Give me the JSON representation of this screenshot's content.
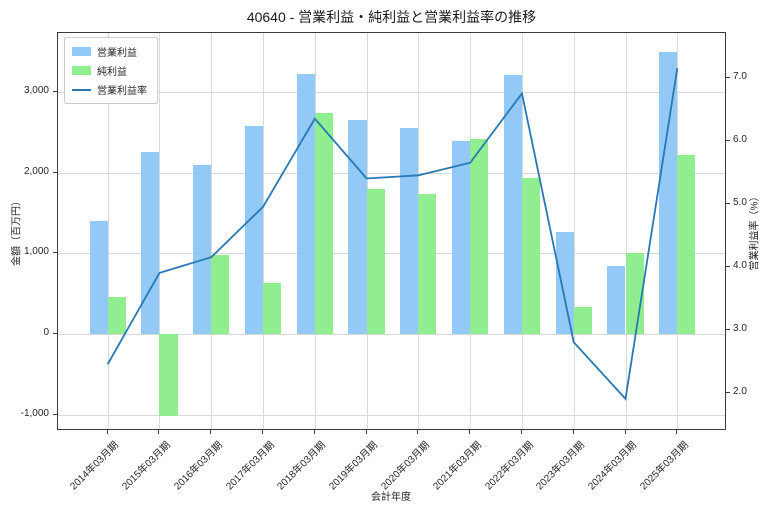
{
  "title": "40640 - 営業利益・純利益と営業利益率の推移",
  "axes": {
    "x_label": "会計年度",
    "left_label": "金額（百万円）",
    "right_label": "営業利益率（%）"
  },
  "legend": {
    "position": "upper left",
    "items": [
      {
        "label": "営業利益",
        "type": "patch",
        "color": "#92C9F6"
      },
      {
        "label": "純利益",
        "type": "patch",
        "color": "#90EE90"
      },
      {
        "label": "営業利益率",
        "type": "line",
        "color": "#2878B4"
      }
    ]
  },
  "chart_data": {
    "type": "bar",
    "title": "40640 - 営業利益・純利益と営業利益率の推移",
    "xlabel": "会計年度",
    "ylabel_left": "金額（百万円）",
    "ylabel_right": "営業利益率（%）",
    "grid": true,
    "legend_position": "upper left",
    "categories": [
      "2014年03月期",
      "2015年03月期",
      "2016年03月期",
      "2017年03月期",
      "2018年03月期",
      "2019年03月期",
      "2020年03月期",
      "2021年03月期",
      "2022年03月期",
      "2023年03月期",
      "2024年03月期",
      "2025年03月期"
    ],
    "series": [
      {
        "name": "営業利益",
        "type": "bar",
        "axis": "left",
        "color": "#92C9F6",
        "values": [
          1400,
          2260,
          2100,
          2580,
          3230,
          2650,
          2560,
          2390,
          3210,
          1270,
          850,
          3500
        ]
      },
      {
        "name": "純利益",
        "type": "bar",
        "axis": "left",
        "color": "#90EE90",
        "values": [
          460,
          -1020,
          980,
          630,
          2740,
          1800,
          1740,
          2420,
          1940,
          340,
          1000,
          2220
        ]
      },
      {
        "name": "営業利益率",
        "type": "line",
        "axis": "right",
        "color": "#2878B4",
        "values": [
          2.45,
          3.9,
          4.15,
          4.95,
          6.35,
          5.4,
          5.45,
          5.65,
          6.75,
          2.8,
          1.9,
          7.15
        ]
      }
    ],
    "left_axis": {
      "ticks": [
        -1000,
        0,
        1000,
        2000,
        3000
      ],
      "tick_labels": [
        "-1,000",
        "0",
        "1,000",
        "2,000",
        "3,000"
      ],
      "range": [
        -1204,
        3736
      ]
    },
    "right_axis": {
      "ticks": [
        2,
        3,
        4,
        5,
        6,
        7
      ],
      "tick_labels": [
        "2.0",
        "3.0",
        "4.0",
        "5.0",
        "6.0",
        "7.0"
      ],
      "range": [
        1.39,
        7.71
      ]
    }
  }
}
